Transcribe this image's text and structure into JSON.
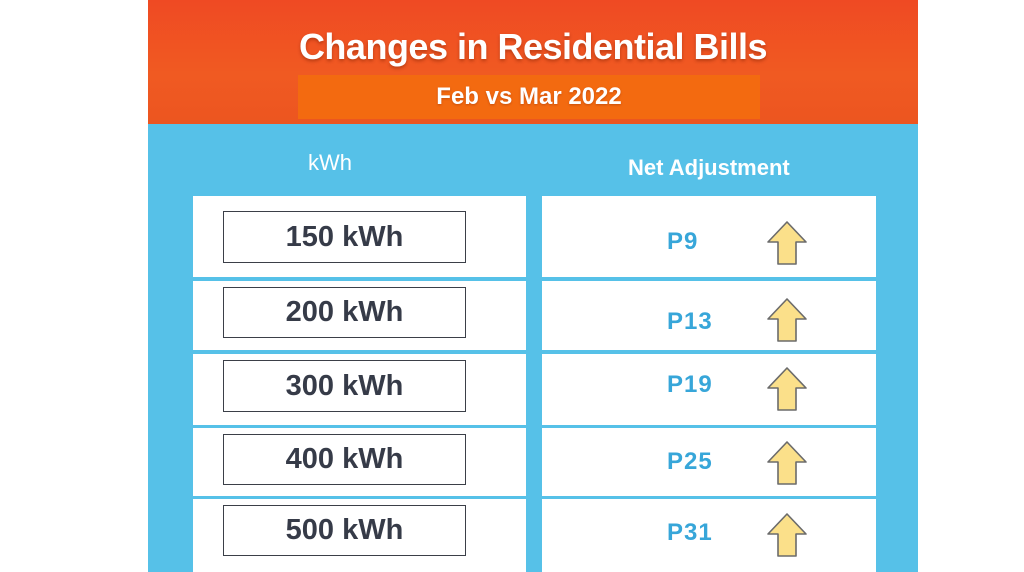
{
  "header": {
    "title": "Changes in Residential Bills",
    "subtitle": "Feb vs Mar 2022"
  },
  "columns": {
    "kwh": "kWh",
    "adjustment": "Net Adjustment"
  },
  "rows": [
    {
      "kwh": "150 kWh",
      "amount": "P9",
      "direction": "up-arrow-icon"
    },
    {
      "kwh": "200 kWh",
      "amount": "P13",
      "direction": "up-arrow-icon"
    },
    {
      "kwh": "300 kWh",
      "amount": "P19",
      "direction": "up-arrow-icon"
    },
    {
      "kwh": "400 kWh",
      "amount": "P25",
      "direction": "up-arrow-icon"
    },
    {
      "kwh": "500 kWh",
      "amount": "P31",
      "direction": "up-arrow-icon"
    }
  ],
  "colors": {
    "header": "#ef4a23",
    "subtitle_band": "#f36a10",
    "body": "#56c1e8",
    "amount_text": "#37a6d9",
    "arrow_fill": "#fbe08a"
  }
}
